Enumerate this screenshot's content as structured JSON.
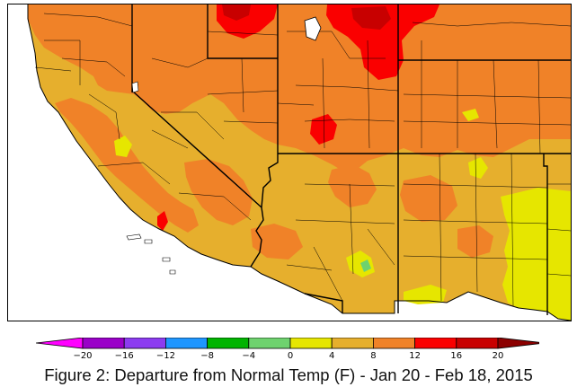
{
  "figure": {
    "caption": "Figure 2: Departure from Normal Temp (F) - Jan 20 - Feb 18, 2015"
  },
  "map": {
    "region": "Southwestern United States",
    "variable": "Departure from Normal Temperature",
    "units": "F",
    "period": "Jan 20 - Feb 18, 2015"
  },
  "legend": {
    "ticks": [
      "-20",
      "-16",
      "-12",
      "-8",
      "-4",
      "0",
      "4",
      "8",
      "12",
      "16",
      "20"
    ],
    "bins": [
      {
        "range": "< -20",
        "color": "#ff00ff"
      },
      {
        "range": "-20 to -16",
        "color": "#9a00c8"
      },
      {
        "range": "-16 to -12",
        "color": "#8c3cf0"
      },
      {
        "range": "-12 to -8",
        "color": "#1e96ff"
      },
      {
        "range": "-8 to -4",
        "color": "#00b400"
      },
      {
        "range": "-4 to 0",
        "color": "#6ed26e"
      },
      {
        "range": "0 to 4",
        "color": "#e6e600"
      },
      {
        "range": "4 to 8",
        "color": "#e6af2d"
      },
      {
        "range": "8 to 12",
        "color": "#f08228"
      },
      {
        "range": "12 to 16",
        "color": "#fa0000"
      },
      {
        "range": "16 to 20",
        "color": "#c80000"
      },
      {
        "range": "> 20",
        "color": "#8c0000"
      }
    ]
  },
  "colors": {
    "ocean": "#ffffff",
    "warm_4_8": "#e6af2d",
    "warm_8_12": "#f08228",
    "hot_12_16": "#fa0000",
    "hot_16_20": "#c80000",
    "neutral_0_4": "#e6e600"
  }
}
